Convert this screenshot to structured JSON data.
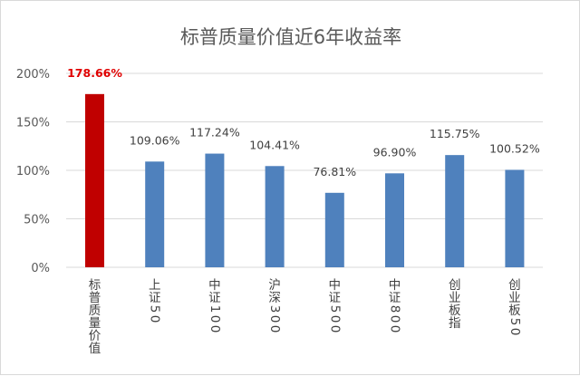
{
  "chart_data": {
    "type": "bar",
    "title": "标普质量价值近6年收益率",
    "categories": [
      "标普质量价值",
      "上证50",
      "中证100",
      "沪深300",
      "中证500",
      "中证800",
      "创业板指",
      "创业板50"
    ],
    "values": [
      178.66,
      109.06,
      117.24,
      104.41,
      76.81,
      96.9,
      115.75,
      100.52
    ],
    "value_labels": [
      "178.66%",
      "109.06%",
      "117.24%",
      "104.41%",
      "76.81%",
      "96.90%",
      "115.75%",
      "100.52%"
    ],
    "ylim": [
      0,
      200
    ],
    "yticks": [
      0,
      50,
      100,
      150,
      200
    ],
    "ytick_labels": [
      "0%",
      "50%",
      "100%",
      "150%",
      "200%"
    ],
    "xlabel": "",
    "ylabel": "",
    "grid": true,
    "legend": "none",
    "colors": {
      "highlight": "#c00000",
      "bar": "#4f81bd",
      "highlight_label": "#e00000",
      "grid": "#d9d9d9"
    },
    "highlight_index": 0
  }
}
